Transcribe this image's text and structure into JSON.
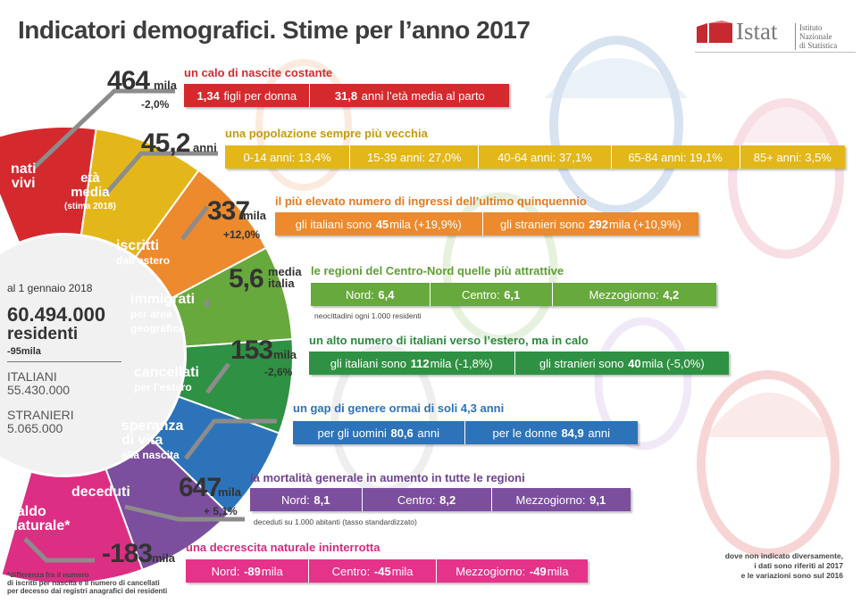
{
  "title": "Indicatori demografici. Stime per l’anno 2017",
  "logo": {
    "word": "Istat",
    "institute_line1": "Istituto Nazionale",
    "institute_line2": "di Statistica"
  },
  "colors": {
    "red": "#d42a2e",
    "yellow": "#e3b71a",
    "orange": "#ec8a2d",
    "green": "#67a93c",
    "darkgreen": "#2f9143",
    "blue": "#2d73b9",
    "purple": "#7b4f9d",
    "magenta": "#dc2f84",
    "pink": "#e43389"
  },
  "center": {
    "date": "al 1 gennaio 2018",
    "total": "60.494.000",
    "residents": "residenti",
    "change": "-95mila",
    "italians_label": "ITALIANI",
    "italians_value": "55.430.000",
    "foreigners_label": "STRANIERI",
    "foreigners_value": "5.065.000"
  },
  "wheel": {
    "nati": "nati",
    "vivi": "vivi",
    "eta": "età",
    "media": "media",
    "stima": "(stima 2018)",
    "iscritti": "iscritti",
    "dall_estero": "dall’estero",
    "immigrati": "immigrati",
    "per_area": "per area",
    "geografica": "geografica",
    "cancellati": "cancellati",
    "per_estero": "per l’estero",
    "speranza": "speranza",
    "di_vita": "di vita",
    "alla_nascita": "alla nascita",
    "deceduti": "deceduti",
    "saldo": "saldo",
    "naturale": "naturale*"
  },
  "rows": {
    "nascite": {
      "value": "464",
      "unit": "mila",
      "change": "-2,0%",
      "heading": "un calo di nascite costante",
      "seg1_val": "1,34",
      "seg1_txt": "figli per donna",
      "seg2_val": "31,8",
      "seg2_txt": "anni l’età media al parto"
    },
    "eta": {
      "value": "45,2",
      "unit": "anni",
      "heading": "una popolazione sempre più vecchia",
      "segs": [
        "0-14 anni: 13,4%",
        "15-39 anni: 27,0%",
        "40-64 anni: 37,1%",
        "65-84 anni: 19,1%",
        "85+ anni: 3,5%"
      ]
    },
    "iscritti": {
      "value": "337",
      "unit": "mila",
      "change": "+12,0%",
      "heading": "il più elevato numero di ingressi dell’ultimo quinquennio",
      "seg1_pre": "gli italiani sono",
      "seg1_val": "45",
      "seg1_post": "mila (+19,9%)",
      "seg2_pre": "gli stranieri sono",
      "seg2_val": "292",
      "seg2_post": "mila (+10,9%)"
    },
    "immigrati": {
      "value": "5,6",
      "unit1": "media",
      "unit2": "italia",
      "heading": "le regioni del Centro-Nord quelle più attrattive",
      "seg1_lbl": "Nord:",
      "seg1_val": "6,4",
      "seg2_lbl": "Centro:",
      "seg2_val": "6,1",
      "seg3_lbl": "Mezzogiorno:",
      "seg3_val": "4,2",
      "note": "neocittadini ogni 1.000 residenti"
    },
    "cancellati": {
      "value": "153",
      "unit": "mila",
      "change": "-2,6%",
      "heading": "un alto numero di italiani verso l’estero, ma in calo",
      "seg1_pre": "gli italiani sono",
      "seg1_val": "112",
      "seg1_post": "mila (-1,8%)",
      "seg2_pre": "gli stranieri sono",
      "seg2_val": "40",
      "seg2_post": "mila (-5,0%)"
    },
    "speranza": {
      "heading": "un gap di genere ormai di soli 4,3 anni",
      "seg1_pre": "per gli uomini",
      "seg1_val": "80,6",
      "seg1_post": "anni",
      "seg2_pre": "per le donne",
      "seg2_val": "84,9",
      "seg2_post": "anni"
    },
    "deceduti": {
      "value": "647",
      "unit": "mila",
      "change": "+ 5,1%",
      "heading": "la mortalità generale in aumento in tutte le regioni",
      "seg1_lbl": "Nord:",
      "seg1_val": "8,1",
      "seg2_lbl": "Centro:",
      "seg2_val": "8,2",
      "seg3_lbl": "Mezzogiorno:",
      "seg3_val": "9,1",
      "note": "deceduti su 1.000 abitanti (tasso standardizzato)"
    },
    "saldo": {
      "value": "-183",
      "unit": "mila",
      "heading": "una decrescita naturale ininterrotta",
      "seg1_lbl": "Nord:",
      "seg1_val": "-89",
      "seg1_post": "mila",
      "seg2_lbl": "Centro:",
      "seg2_val": "-45",
      "seg2_post": "mila",
      "seg3_lbl": "Mezzogiorno:",
      "seg3_val": "-49",
      "seg3_post": "mila"
    }
  },
  "footnote": {
    "line1": "*differenza fra il numero",
    "line2": "di iscritti per nascita e il numero di cancellati",
    "line3": "per decesso dai registri anagrafici dei residenti"
  },
  "side_note": {
    "line1": "dove non indicato diversamente,",
    "line2": "i dati sono riferiti al 2017",
    "line3": "e le variazioni sono sul 2016"
  }
}
